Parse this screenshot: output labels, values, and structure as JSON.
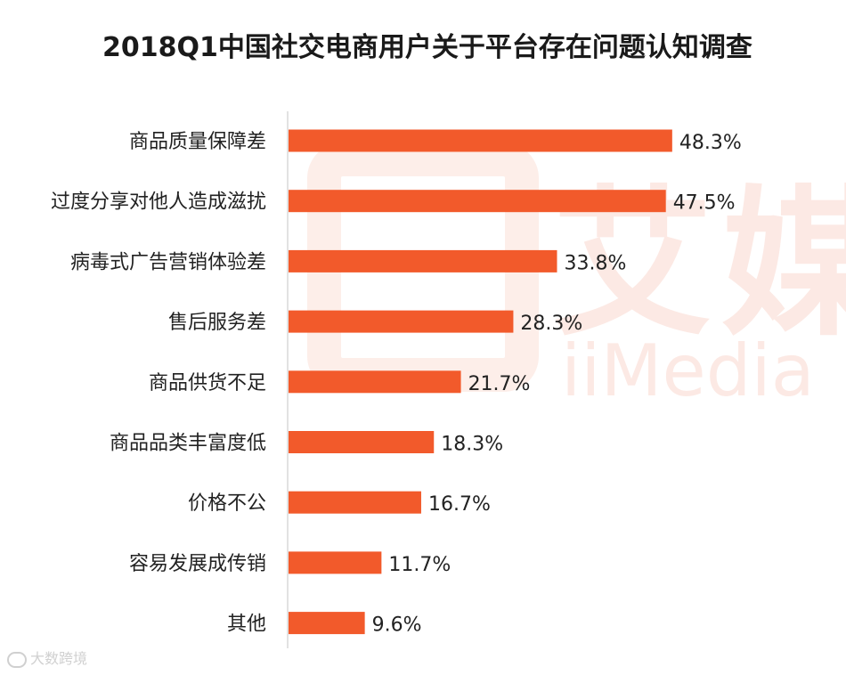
{
  "chart_data": {
    "type": "bar",
    "orientation": "horizontal",
    "title": "2018Q1中国社交电商用户关于平台存在问题认知调查",
    "categories": [
      "商品质量保障差",
      "过度分享对他人造成滋扰",
      "病毒式广告营销体验差",
      "售后服务差",
      "商品供货不足",
      "商品品类丰富度低",
      "价格不公",
      "容易发展成传销",
      "其他"
    ],
    "values": [
      48.3,
      47.5,
      33.8,
      28.3,
      21.7,
      18.3,
      16.7,
      11.7,
      9.6
    ],
    "value_labels": [
      "48.3%",
      "47.5%",
      "33.8%",
      "28.3%",
      "21.7%",
      "18.3%",
      "16.7%",
      "11.7%",
      "9.6%"
    ],
    "xlim": [
      0,
      50
    ],
    "unit": "%",
    "bar_color": "#f25a2b",
    "grid": false,
    "legend": "none"
  },
  "watermark": {
    "cn_text": "艾媒",
    "en_text": "iiMedia",
    "color": "#e8552c"
  },
  "source_mark": {
    "text": "大数跨境",
    "icon": "chat-bubble-icon"
  }
}
